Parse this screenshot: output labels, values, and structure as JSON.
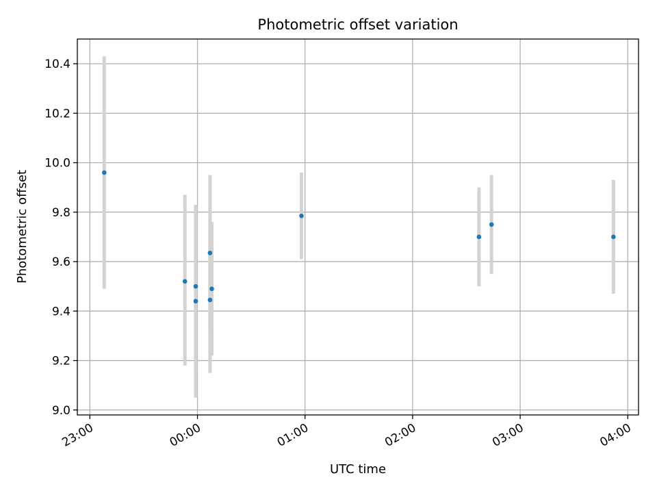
{
  "chart_data": {
    "type": "scatter",
    "title": "Photometric offset variation",
    "xlabel": "UTC time",
    "ylabel": "Photometric offset",
    "grid": true,
    "x_ticks": [
      "23:00",
      "00:00",
      "01:00",
      "02:00",
      "03:00",
      "04:00"
    ],
    "y_ticks": [
      "9.0",
      "9.2",
      "9.4",
      "9.6",
      "9.8",
      "10.0",
      "10.2",
      "10.4"
    ],
    "xlim": [
      "22:53",
      "04:06"
    ],
    "ylim": [
      8.98,
      10.5
    ],
    "colors": {
      "point": "#1f77b4",
      "errorbar": "#d3d3d3",
      "grid": "#b0b0b0"
    },
    "points": [
      {
        "x": "23:08",
        "y": 9.96,
        "y_low": 9.49,
        "y_high": 10.43
      },
      {
        "x": "23:53",
        "y": 9.52,
        "y_low": 9.18,
        "y_high": 9.87
      },
      {
        "x": "23:59",
        "y": 9.44,
        "y_low": 9.05,
        "y_high": 9.83
      },
      {
        "x": "23:59",
        "y": 9.5,
        "y_low": 9.15,
        "y_high": 9.81
      },
      {
        "x": "00:07",
        "y": 9.635,
        "y_low": 9.32,
        "y_high": 9.95
      },
      {
        "x": "00:07",
        "y": 9.445,
        "y_low": 9.15,
        "y_high": 9.74
      },
      {
        "x": "00:08",
        "y": 9.49,
        "y_low": 9.22,
        "y_high": 9.76
      },
      {
        "x": "00:58",
        "y": 9.785,
        "y_low": 9.61,
        "y_high": 9.96
      },
      {
        "x": "02:37",
        "y": 9.7,
        "y_low": 9.5,
        "y_high": 9.9
      },
      {
        "x": "02:44",
        "y": 9.75,
        "y_low": 9.55,
        "y_high": 9.95
      },
      {
        "x": "03:52",
        "y": 9.7,
        "y_low": 9.47,
        "y_high": 9.93
      }
    ]
  }
}
